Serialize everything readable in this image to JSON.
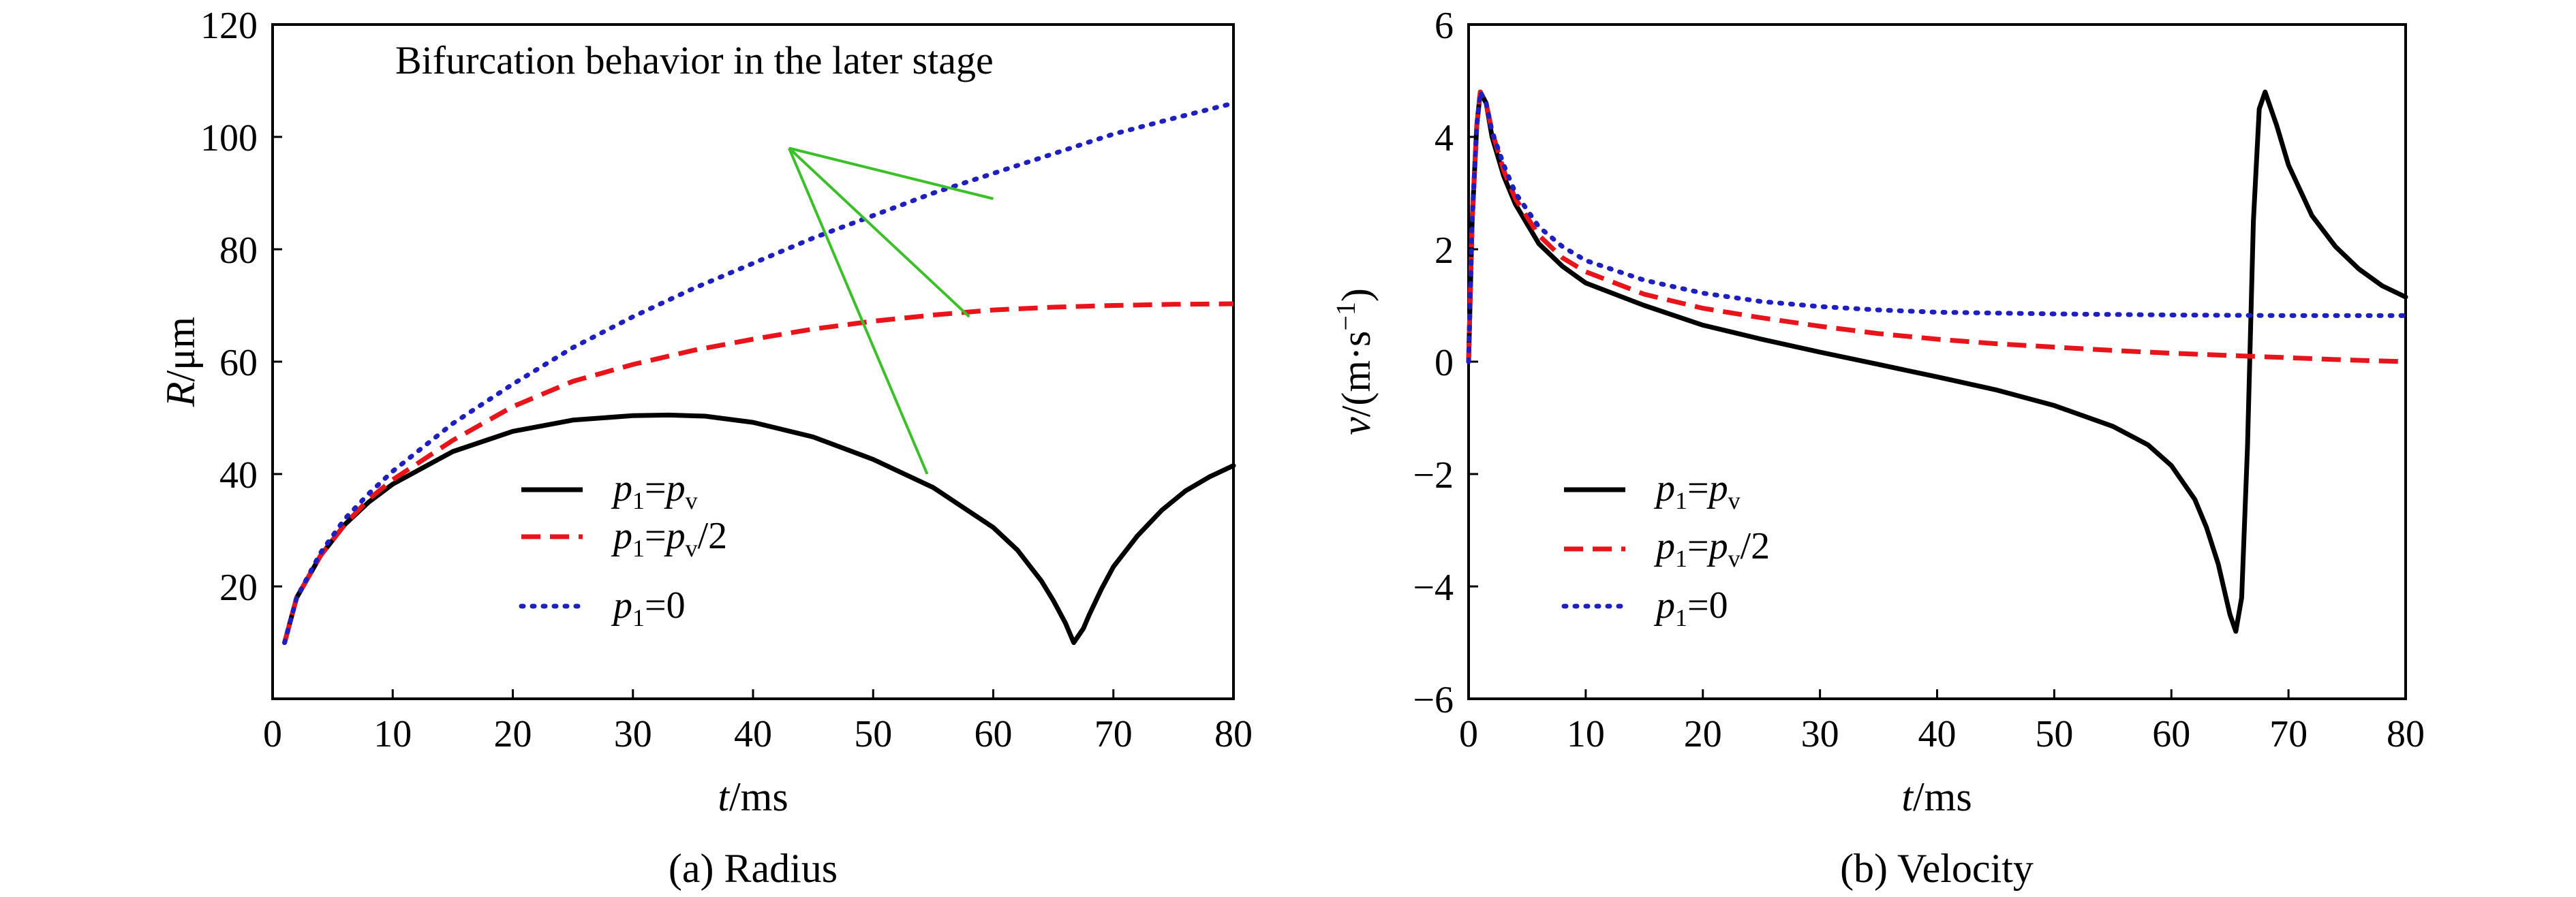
{
  "charts": [
    {
      "type": "line",
      "caption": "(a) Radius",
      "xlabel": "t/ms",
      "ylabel": "R/μm",
      "xlim": [
        0,
        80
      ],
      "ylim": [
        0,
        120
      ],
      "xticks": [
        0,
        10,
        20,
        30,
        40,
        50,
        60,
        70,
        80
      ],
      "yticks": [
        20,
        40,
        60,
        80,
        100,
        120
      ],
      "annotation": {
        "text": "Bifurcation behavior in the later stage",
        "origin": [
          43,
          98
        ],
        "targets": [
          [
            60,
            89
          ],
          [
            58,
            68
          ],
          [
            54.5,
            40
          ]
        ]
      },
      "legend_position": "lower-left",
      "series": [
        {
          "name": "p1=pv",
          "style": "solid",
          "color": "#000000",
          "x": [
            1,
            2,
            4,
            6,
            8,
            10,
            15,
            20,
            25,
            30,
            33,
            36,
            40,
            45,
            50,
            55,
            60,
            62,
            64,
            65,
            66,
            66.7,
            67.5,
            68,
            69,
            70,
            72,
            74,
            76,
            78,
            80
          ],
          "y": [
            10,
            18,
            25.5,
            31,
            35,
            38.2,
            44,
            47.6,
            49.6,
            50.4,
            50.5,
            50.3,
            49.2,
            46.6,
            42.6,
            37.6,
            30.5,
            26.5,
            21,
            17.5,
            13.5,
            10,
            12.5,
            15,
            19.5,
            23.5,
            29,
            33.5,
            37,
            39.5,
            41.5
          ]
        },
        {
          "name": "p1=pv/2",
          "style": "dashed",
          "color": "#e8141c",
          "x": [
            1,
            2,
            4,
            6,
            8,
            10,
            15,
            20,
            25,
            30,
            35,
            40,
            45,
            50,
            55,
            60,
            65,
            70,
            75,
            80
          ],
          "y": [
            10,
            18,
            25.5,
            31,
            35.5,
            39,
            46,
            52,
            56.5,
            59.5,
            62,
            64,
            65.8,
            67.2,
            68.3,
            69.2,
            69.7,
            70,
            70.2,
            70.3
          ]
        },
        {
          "name": "p1=0",
          "style": "dotted",
          "color": "#1f1fbf",
          "x": [
            1,
            2,
            4,
            6,
            8,
            10,
            15,
            20,
            25,
            30,
            35,
            40,
            45,
            50,
            55,
            60,
            65,
            70,
            75,
            80
          ],
          "y": [
            10,
            18,
            26,
            32,
            36.5,
            40.5,
            49,
            56,
            62.5,
            68,
            73,
            77.5,
            82,
            86,
            90,
            93.5,
            97,
            100.5,
            103.3,
            106
          ]
        }
      ]
    },
    {
      "type": "line",
      "caption": "(b) Velocity",
      "xlabel": "t/ms",
      "ylabel": "v/(m·s⁻¹)",
      "xlim": [
        0,
        80
      ],
      "ylim": [
        -6,
        6
      ],
      "xticks": [
        0,
        10,
        20,
        30,
        40,
        50,
        60,
        70,
        80
      ],
      "yticks": [
        -6,
        -4,
        -2,
        0,
        2,
        4,
        6
      ],
      "legend_position": "lower-left",
      "series": [
        {
          "name": "p1=pv",
          "style": "solid",
          "color": "#000000",
          "x": [
            0,
            0.3,
            0.7,
            1,
            1.5,
            2,
            3,
            4,
            6,
            8,
            10,
            15,
            20,
            25,
            30,
            35,
            40,
            45,
            50,
            55,
            58,
            60,
            62,
            63,
            64,
            65,
            65.5,
            66,
            66.5,
            67,
            67.5,
            68,
            69,
            70,
            72,
            74,
            76,
            78,
            80
          ],
          "y": [
            0,
            2.5,
            4.2,
            4.8,
            4.6,
            4.0,
            3.3,
            2.8,
            2.1,
            1.7,
            1.4,
            1.0,
            0.65,
            0.4,
            0.17,
            -0.05,
            -0.27,
            -0.5,
            -0.78,
            -1.15,
            -1.48,
            -1.85,
            -2.45,
            -2.95,
            -3.6,
            -4.5,
            -4.8,
            -4.2,
            -1.5,
            2.5,
            4.5,
            4.8,
            4.2,
            3.5,
            2.6,
            2.05,
            1.65,
            1.35,
            1.15
          ]
        },
        {
          "name": "p1=pv/2",
          "style": "dashed",
          "color": "#e8141c",
          "x": [
            0,
            0.3,
            0.7,
            1,
            1.5,
            2,
            3,
            4,
            6,
            8,
            10,
            15,
            20,
            25,
            30,
            35,
            40,
            45,
            50,
            55,
            60,
            65,
            70,
            75,
            80
          ],
          "y": [
            0,
            2.5,
            4.2,
            4.8,
            4.6,
            4.1,
            3.4,
            2.9,
            2.25,
            1.85,
            1.6,
            1.2,
            0.95,
            0.78,
            0.63,
            0.5,
            0.4,
            0.32,
            0.26,
            0.2,
            0.15,
            0.11,
            0.07,
            0.03,
            0.0
          ]
        },
        {
          "name": "p1=0",
          "style": "dotted",
          "color": "#1f1fbf",
          "x": [
            0,
            0.3,
            0.7,
            1,
            1.5,
            2,
            3,
            4,
            6,
            8,
            10,
            15,
            20,
            25,
            30,
            35,
            40,
            50,
            60,
            70,
            80
          ],
          "y": [
            0,
            2.5,
            4.2,
            4.8,
            4.6,
            4.1,
            3.5,
            3.0,
            2.4,
            2.05,
            1.8,
            1.45,
            1.22,
            1.07,
            0.98,
            0.92,
            0.88,
            0.85,
            0.83,
            0.82,
            0.82
          ]
        }
      ]
    }
  ],
  "legend_labels": [
    {
      "main": "p",
      "sub": "1",
      "eq": "=",
      "main2": "p",
      "sub2": "v",
      "tail": ""
    },
    {
      "main": "p",
      "sub": "1",
      "eq": "=",
      "main2": "p",
      "sub2": "v",
      "tail": "/2"
    },
    {
      "main": "p",
      "sub": "1",
      "eq": "=0",
      "main2": "",
      "sub2": "",
      "tail": ""
    }
  ],
  "axis_title_parts": {
    "a_x_italic": "t",
    "a_x_rest": "/ms",
    "a_y_italic": "R",
    "a_y_rest": "/μm",
    "b_x_italic": "t",
    "b_x_rest": "/ms",
    "b_y_italic": "v",
    "b_y_rest": "/(m·s",
    "b_y_sup": "−1",
    "b_y_close": ")"
  }
}
